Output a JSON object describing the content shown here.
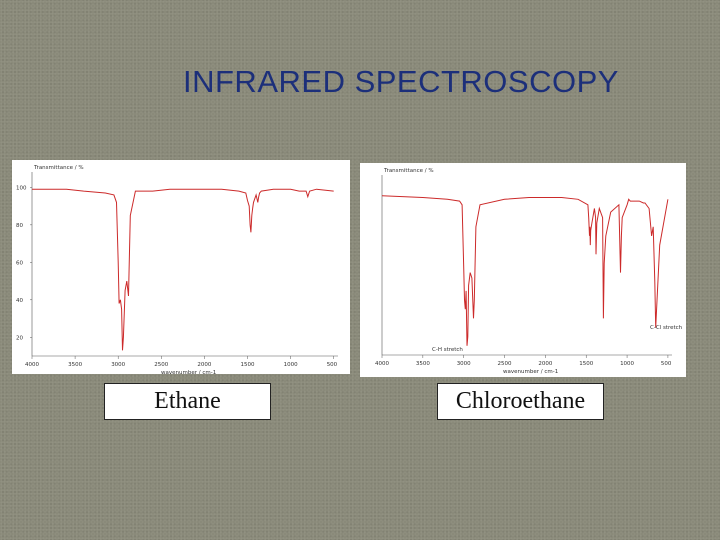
{
  "slide": {
    "title": "INFRARED SPECTROSCOPY",
    "labels": {
      "left": "Ethane",
      "right": "Chloroethane"
    }
  },
  "chart_data": [
    {
      "type": "line",
      "name": "ethane_spectrum",
      "ylabel": "Transmittance / %",
      "xlabel": "wavenumber / cm-1",
      "x_ticks": [
        4000,
        3500,
        3000,
        2500,
        2000,
        1500,
        1000,
        500
      ],
      "y_ticks": [
        20,
        40,
        60,
        80,
        100
      ],
      "xlim": [
        4000,
        450
      ],
      "ylim": [
        10,
        105
      ],
      "line_color": "#cc2a2a",
      "x": [
        4000,
        3600,
        3400,
        3150,
        3050,
        3020,
        3000,
        2990,
        2975,
        2960,
        2950,
        2940,
        2920,
        2900,
        2880,
        2860,
        2800,
        2600,
        2400,
        2200,
        2000,
        1800,
        1600,
        1520,
        1500,
        1480,
        1470,
        1460,
        1450,
        1440,
        1430,
        1400,
        1380,
        1370,
        1360,
        1340,
        1200,
        1000,
        900,
        820,
        800,
        780,
        700,
        500
      ],
      "y": [
        99,
        99,
        98,
        97,
        96,
        92,
        60,
        38,
        40,
        35,
        13,
        20,
        45,
        50,
        42,
        85,
        98,
        98,
        99,
        99,
        99,
        99,
        98,
        97,
        93,
        90,
        80,
        76,
        85,
        89,
        92,
        96,
        92,
        95,
        97,
        98,
        99,
        99,
        98,
        98,
        95,
        98,
        99,
        98
      ]
    },
    {
      "type": "line",
      "name": "chloroethane_spectrum",
      "ylabel": "Transmittance / %",
      "xlabel": "wavenumber / cm-1",
      "x_ticks": [
        4000,
        3500,
        3000,
        2500,
        2000,
        1500,
        1000,
        500
      ],
      "annotations": [
        "C-H stretch",
        "C-Cl stretch"
      ],
      "xlim": [
        4000,
        450
      ],
      "ylim": [
        10,
        105
      ],
      "line_color": "#cc2a2a",
      "x": [
        4000,
        3500,
        3200,
        3050,
        3020,
        3000,
        2990,
        2980,
        2970,
        2960,
        2950,
        2940,
        2920,
        2900,
        2880,
        2870,
        2850,
        2800,
        2500,
        2200,
        2000,
        1800,
        1600,
        1480,
        1470,
        1460,
        1455,
        1450,
        1445,
        1430,
        1400,
        1385,
        1380,
        1370,
        1340,
        1300,
        1290,
        1280,
        1260,
        1200,
        1100,
        1080,
        1070,
        1060,
        1000,
        980,
        960,
        850,
        800,
        780,
        730,
        700,
        680,
        660,
        650,
        600,
        500
      ],
      "y": [
        97,
        96,
        95,
        94,
        92,
        58,
        40,
        35,
        45,
        15,
        20,
        48,
        55,
        52,
        30,
        40,
        80,
        92,
        95,
        96,
        96,
        96,
        95,
        92,
        85,
        75,
        80,
        70,
        78,
        82,
        90,
        85,
        65,
        82,
        90,
        85,
        30,
        60,
        75,
        88,
        92,
        55,
        75,
        85,
        92,
        95,
        94,
        94,
        93,
        93,
        90,
        75,
        80,
        50,
        25,
        70,
        95
      ]
    }
  ]
}
